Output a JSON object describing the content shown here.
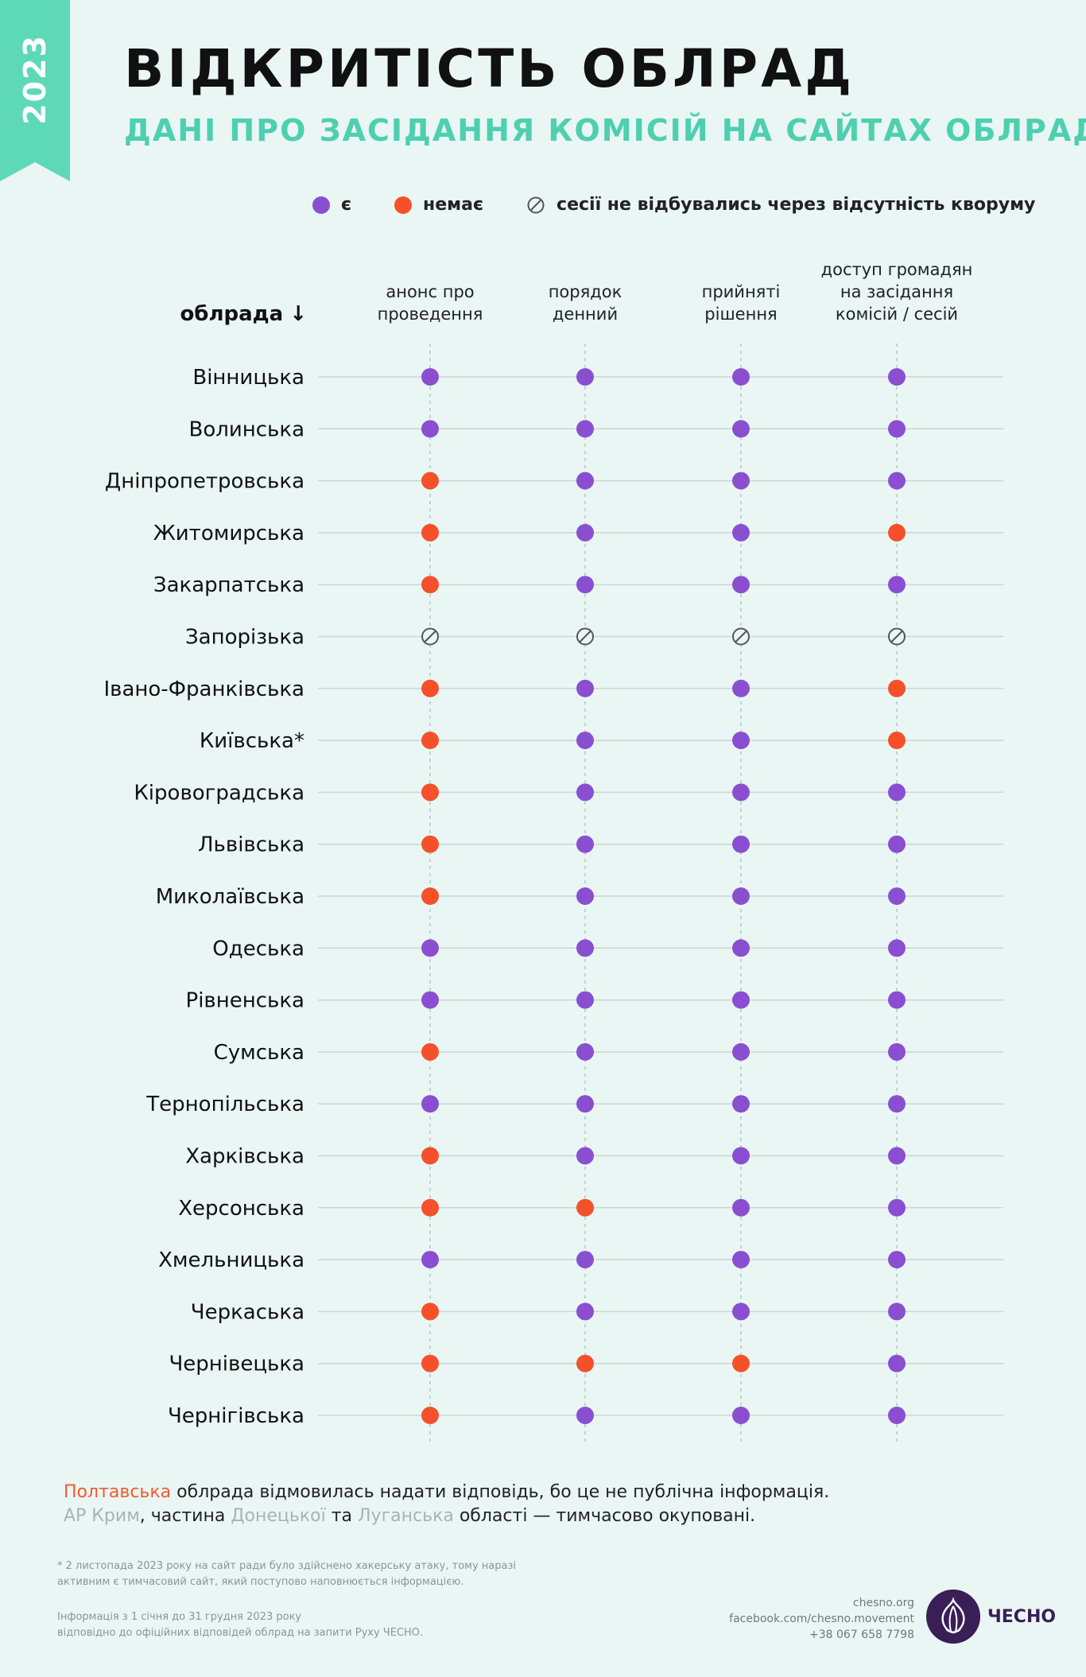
{
  "ribbon": {
    "year": "2023",
    "color": "#5ed9b8"
  },
  "title": "ВІДКРИТІСТЬ ОБЛРАД",
  "subtitle": "ДАНІ ПРО ЗАСІДАННЯ КОМІСІЙ НА САЙТАХ ОБЛРАД",
  "legend": {
    "yes": "є",
    "no": "немає",
    "na": "сесії не відбувались через відсутність кворуму"
  },
  "colors": {
    "yes": "#8a4fd1",
    "no": "#f4512b",
    "na": "#555555"
  },
  "row_header": "облрада",
  "columns": [
    {
      "line1": "анонс про",
      "line2": "проведення",
      "line3": ""
    },
    {
      "line1": "порядок",
      "line2": "денний",
      "line3": ""
    },
    {
      "line1": "прийняті",
      "line2": "рішення",
      "line3": ""
    },
    {
      "line1": "доступ громадян",
      "line2": "на засідання",
      "line3": "комісій / сесій"
    }
  ],
  "chart_data": {
    "type": "table",
    "value_legend": {
      "yes": "є",
      "no": "немає",
      "na": "сесії не відбувались через відсутність кворуму"
    },
    "columns": [
      "анонс про проведення",
      "порядок денний",
      "прийняті рішення",
      "доступ громадян на засідання комісій / сесій"
    ],
    "rows": [
      {
        "name": "Вінницька",
        "values": [
          "yes",
          "yes",
          "yes",
          "yes"
        ]
      },
      {
        "name": "Волинська",
        "values": [
          "yes",
          "yes",
          "yes",
          "yes"
        ]
      },
      {
        "name": "Дніпропетровська",
        "values": [
          "no",
          "yes",
          "yes",
          "yes"
        ]
      },
      {
        "name": "Житомирська",
        "values": [
          "no",
          "yes",
          "yes",
          "no"
        ]
      },
      {
        "name": "Закарпатська",
        "values": [
          "no",
          "yes",
          "yes",
          "yes"
        ]
      },
      {
        "name": "Запорізька",
        "values": [
          "na",
          "na",
          "na",
          "na"
        ]
      },
      {
        "name": "Івано-Франківська",
        "values": [
          "no",
          "yes",
          "yes",
          "no"
        ]
      },
      {
        "name": "Київська*",
        "values": [
          "no",
          "yes",
          "yes",
          "no"
        ]
      },
      {
        "name": "Кіровоградська",
        "values": [
          "no",
          "yes",
          "yes",
          "yes"
        ]
      },
      {
        "name": "Львівська",
        "values": [
          "no",
          "yes",
          "yes",
          "yes"
        ]
      },
      {
        "name": "Миколаївська",
        "values": [
          "no",
          "yes",
          "yes",
          "yes"
        ]
      },
      {
        "name": "Одеська",
        "values": [
          "yes",
          "yes",
          "yes",
          "yes"
        ]
      },
      {
        "name": "Рівненська",
        "values": [
          "yes",
          "yes",
          "yes",
          "yes"
        ]
      },
      {
        "name": "Сумська",
        "values": [
          "no",
          "yes",
          "yes",
          "yes"
        ]
      },
      {
        "name": "Тернопільська",
        "values": [
          "yes",
          "yes",
          "yes",
          "yes"
        ]
      },
      {
        "name": "Харківська",
        "values": [
          "no",
          "yes",
          "yes",
          "yes"
        ]
      },
      {
        "name": "Херсонська",
        "values": [
          "no",
          "no",
          "yes",
          "yes"
        ]
      },
      {
        "name": "Хмельницька",
        "values": [
          "yes",
          "yes",
          "yes",
          "yes"
        ]
      },
      {
        "name": "Черкаська",
        "values": [
          "no",
          "yes",
          "yes",
          "yes"
        ]
      },
      {
        "name": "Чернівецька",
        "values": [
          "no",
          "no",
          "no",
          "yes"
        ]
      },
      {
        "name": "Чернігівська",
        "values": [
          "no",
          "yes",
          "yes",
          "yes"
        ]
      }
    ]
  },
  "notes": {
    "line1_highlight": "Полтавська",
    "line1_rest": " облрада відмовилась надати відповідь, бо це не публічна інформація.",
    "line2_part1": "АР Крим",
    "line2_part2": ", частина ",
    "line2_part3": "Донецької",
    "line2_part4": " та ",
    "line2_part5": "Луганська",
    "line2_part6": " області — тимчасово окуповані."
  },
  "footnote": "* 2 листопада 2023 року на сайт ради було здійснено хакерську атаку, тому наразі активним є тимчасовий сайт, який поступово наповнюється інформацією.",
  "source_line1": "Інформація з 1 січня до 31 грудня 2023 року",
  "source_line2": "відповідно до офіційних відповідей облрад на запити Руху ЧЕСНО.",
  "contacts": {
    "site": "chesno.org",
    "facebook": "facebook.com/chesno.movement",
    "phone": "+38 067 658 7798"
  },
  "logo_text": "ЧЕСНО"
}
